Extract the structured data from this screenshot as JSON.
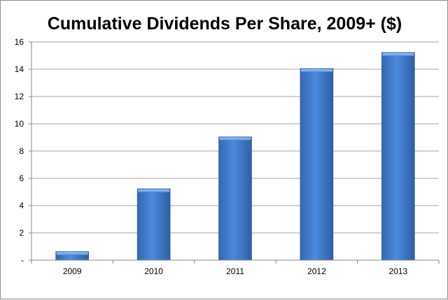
{
  "chart_data": {
    "type": "bar",
    "title": "Cumulative Dividends Per Share, 2009+ ($)",
    "xlabel": "",
    "ylabel": "",
    "categories": [
      "2009",
      "2010",
      "2011",
      "2012",
      "2013"
    ],
    "values": [
      0.63,
      5.23,
      9.04,
      14.05,
      15.23
    ],
    "ylim": [
      0,
      16
    ],
    "yticks": [
      0,
      2,
      4,
      6,
      8,
      10,
      12,
      14,
      16
    ],
    "ytick_labels": [
      "-",
      "2",
      "4",
      "6",
      "8",
      "10",
      "12",
      "14",
      "16"
    ],
    "grid": true,
    "legend": "none",
    "colors": {
      "bar": "#3f7fd0",
      "bar_dark": "#2f62a8",
      "grid": "#a6a6a6"
    }
  }
}
